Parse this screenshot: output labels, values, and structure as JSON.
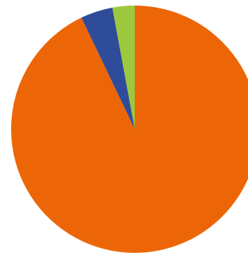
{
  "chart_data": {
    "type": "pie",
    "title": "",
    "start_angle_deg": 0,
    "direction": "clockwise",
    "slices": [
      {
        "value": 92.9,
        "color": "#EC6608"
      },
      {
        "value": 4.2,
        "color": "#2F4C9A"
      },
      {
        "value": 2.9,
        "color": "#9BC83D"
      }
    ]
  }
}
